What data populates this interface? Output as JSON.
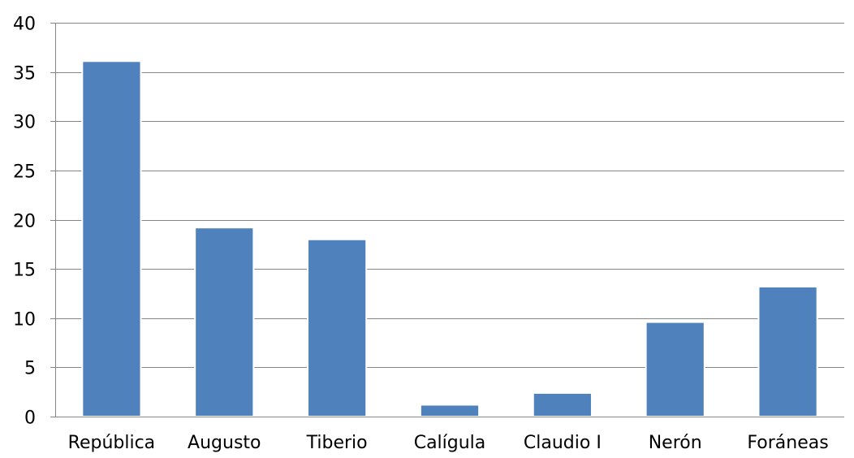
{
  "chart_data": {
    "type": "bar",
    "categories": [
      "República",
      "Augusto",
      "Tiberio",
      "Calígula",
      "Claudio I",
      "Nerón",
      "Foráneas"
    ],
    "values": [
      36.1,
      19.2,
      18.0,
      1.2,
      2.4,
      9.6,
      13.2
    ],
    "title": "",
    "xlabel": "",
    "ylabel": "",
    "ylim": [
      0,
      40
    ],
    "yticks": [
      0,
      5,
      10,
      15,
      20,
      25,
      30,
      35,
      40
    ],
    "grid": true,
    "legend": "none",
    "colors": {
      "bar": "#4F81BD",
      "grid": "#868686"
    }
  }
}
